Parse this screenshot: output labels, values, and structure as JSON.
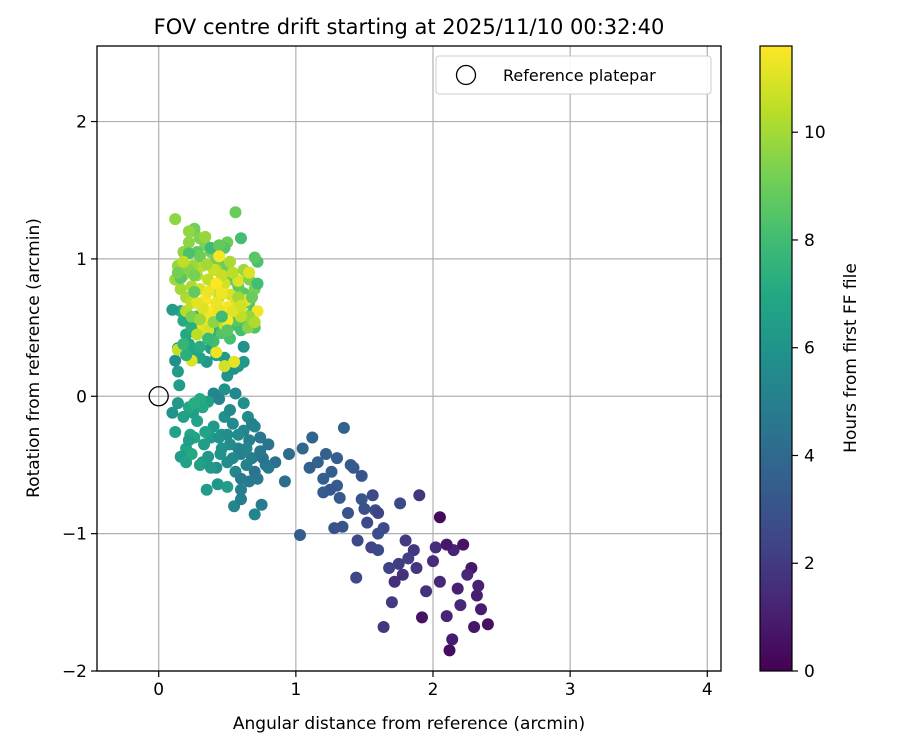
{
  "chart_data": {
    "type": "scatter",
    "title": "FOV centre drift starting at 2025/11/10 00:32:40",
    "xlabel": "Angular distance from reference (arcmin)",
    "ylabel": "Rotation from reference (arcmin)",
    "xlim": [
      -0.45,
      4.1
    ],
    "ylim": [
      -2.0,
      2.55
    ],
    "xticks": [
      0,
      1,
      2,
      3,
      4
    ],
    "xtick_labels": [
      "0",
      "1",
      "2",
      "3",
      "4"
    ],
    "yticks": [
      -2,
      -1,
      0,
      1,
      2
    ],
    "ytick_labels": [
      "−2",
      "−1",
      "0",
      "1",
      "2"
    ],
    "grid": true,
    "legend": {
      "location": "top-right",
      "entries": [
        {
          "label": "Reference platepar",
          "marker": "open-circle",
          "x": 0,
          "y": 0
        }
      ]
    },
    "colorbar": {
      "label": "Hours from first FF file",
      "colormap": "viridis",
      "range": [
        0,
        11.6
      ],
      "ticks": [
        0,
        2,
        4,
        6,
        8,
        10
      ],
      "tick_labels": [
        "0",
        "2",
        "4",
        "6",
        "8",
        "10"
      ]
    },
    "points": [
      [
        2.05,
        -0.88,
        0.3
      ],
      [
        2.12,
        -1.85,
        0.4
      ],
      [
        2.4,
        -1.66,
        0.5
      ],
      [
        2.22,
        -1.08,
        0.6
      ],
      [
        2.28,
        -1.25,
        0.8
      ],
      [
        2.32,
        -1.45,
        1.0
      ],
      [
        2.35,
        -1.55,
        0.9
      ],
      [
        2.18,
        -1.4,
        1.1
      ],
      [
        2.3,
        -1.68,
        0.7
      ],
      [
        2.15,
        -1.12,
        1.2
      ],
      [
        2.25,
        -1.3,
        1.3
      ],
      [
        2.1,
        -1.6,
        1.2
      ],
      [
        2.05,
        -1.35,
        1.4
      ],
      [
        2.0,
        -1.2,
        1.5
      ],
      [
        1.92,
        -1.61,
        0.6
      ],
      [
        2.02,
        -1.1,
        1.6
      ],
      [
        2.1,
        -1.08,
        0.8
      ],
      [
        2.2,
        -1.52,
        1.4
      ],
      [
        2.33,
        -1.38,
        1.1
      ],
      [
        2.14,
        -1.77,
        0.9
      ],
      [
        1.9,
        -0.72,
        1.8
      ],
      [
        1.95,
        -1.42,
        1.7
      ],
      [
        1.86,
        -1.12,
        1.9
      ],
      [
        1.8,
        -1.05,
        2.0
      ],
      [
        1.78,
        -1.3,
        1.7
      ],
      [
        1.75,
        -1.22,
        2.1
      ],
      [
        1.7,
        -1.5,
        2.0
      ],
      [
        1.68,
        -1.25,
        2.3
      ],
      [
        1.64,
        -1.68,
        1.9
      ],
      [
        1.82,
        -1.18,
        2.2
      ],
      [
        1.88,
        -1.25,
        1.8
      ],
      [
        1.72,
        -1.35,
        1.6
      ],
      [
        1.6,
        -1.12,
        2.6
      ],
      [
        1.56,
        -0.72,
        2.7
      ],
      [
        1.6,
        -1.0,
        2.8
      ],
      [
        1.52,
        -0.92,
        2.6
      ],
      [
        1.5,
        -0.82,
        2.9
      ],
      [
        1.48,
        -0.58,
        3.0
      ],
      [
        1.44,
        -1.32,
        2.5
      ],
      [
        1.42,
        -0.52,
        3.2
      ],
      [
        1.38,
        -0.85,
        3.0
      ],
      [
        1.34,
        -0.95,
        3.1
      ],
      [
        1.32,
        -0.74,
        3.3
      ],
      [
        1.3,
        -0.65,
        3.4
      ],
      [
        1.28,
        -0.96,
        2.9
      ],
      [
        1.26,
        -0.55,
        3.5
      ],
      [
        1.22,
        -0.42,
        3.6
      ],
      [
        1.2,
        -0.6,
        3.5
      ],
      [
        1.16,
        -0.48,
        3.7
      ],
      [
        1.12,
        -0.3,
        3.8
      ],
      [
        1.1,
        -0.52,
        3.6
      ],
      [
        1.05,
        -0.38,
        3.9
      ],
      [
        1.03,
        -1.01,
        3.4
      ],
      [
        1.35,
        -0.23,
        3.7
      ],
      [
        1.58,
        -0.83,
        2.8
      ],
      [
        1.64,
        -0.96,
        2.7
      ],
      [
        1.45,
        -1.05,
        2.6
      ],
      [
        1.4,
        -0.5,
        3.3
      ],
      [
        1.2,
        -0.7,
        3.4
      ],
      [
        1.3,
        -0.45,
        3.5
      ],
      [
        1.25,
        -0.68,
        3.2
      ],
      [
        1.55,
        -1.1,
        2.4
      ],
      [
        1.76,
        -0.78,
        2.5
      ],
      [
        1.6,
        -0.85,
        2.3
      ],
      [
        1.48,
        -0.75,
        3.1
      ],
      [
        0.95,
        -0.42,
        4.1
      ],
      [
        0.92,
        -0.62,
        4.2
      ],
      [
        0.85,
        -0.48,
        4.3
      ],
      [
        0.8,
        -0.35,
        4.4
      ],
      [
        0.78,
        -0.5,
        4.5
      ],
      [
        0.74,
        -0.4,
        4.6
      ],
      [
        0.7,
        -0.55,
        4.4
      ],
      [
        0.72,
        -0.6,
        4.7
      ],
      [
        0.75,
        -0.79,
        4.8
      ],
      [
        0.68,
        -0.45,
        4.9
      ],
      [
        0.66,
        -0.32,
        5.0
      ],
      [
        0.64,
        -0.5,
        5.1
      ],
      [
        0.62,
        -0.25,
        5.2
      ],
      [
        0.6,
        -0.68,
        5.0
      ],
      [
        0.58,
        -0.38,
        5.3
      ],
      [
        0.56,
        -0.55,
        5.4
      ],
      [
        0.55,
        -0.8,
        5.2
      ],
      [
        0.54,
        -0.2,
        5.5
      ],
      [
        0.52,
        -0.35,
        5.6
      ],
      [
        0.5,
        -0.48,
        5.7
      ],
      [
        0.48,
        -0.15,
        5.8
      ],
      [
        0.46,
        -0.28,
        5.9
      ],
      [
        0.45,
        -0.42,
        6.0
      ],
      [
        0.43,
        -0.64,
        6.1
      ],
      [
        0.42,
        -0.52,
        5.9
      ],
      [
        0.4,
        -0.22,
        6.2
      ],
      [
        0.38,
        -0.3,
        6.3
      ],
      [
        0.36,
        -0.44,
        6.2
      ],
      [
        0.35,
        -0.68,
        6.4
      ],
      [
        0.33,
        -0.35,
        6.5
      ],
      [
        0.32,
        -0.48,
        6.3
      ],
      [
        0.3,
        -0.5,
        6.6
      ],
      [
        0.28,
        -0.18,
        6.7
      ],
      [
        0.26,
        -0.3,
        6.8
      ],
      [
        0.25,
        -0.12,
        6.5
      ],
      [
        0.23,
        -0.28,
        6.9
      ],
      [
        0.22,
        -0.08,
        7.0
      ],
      [
        0.2,
        -0.38,
        6.8
      ],
      [
        0.18,
        -0.15,
        6.6
      ],
      [
        0.16,
        -0.44,
        6.4
      ],
      [
        0.14,
        -0.05,
        6.2
      ],
      [
        0.12,
        -0.26,
        6.7
      ],
      [
        0.1,
        -0.12,
        6.0
      ],
      [
        0.12,
        0.26,
        5.8
      ],
      [
        0.14,
        0.35,
        5.6
      ],
      [
        0.15,
        0.08,
        6.4
      ],
      [
        0.14,
        0.18,
        6.3
      ],
      [
        0.6,
        -0.6,
        4.9
      ],
      [
        0.66,
        -0.62,
        4.8
      ],
      [
        0.7,
        -0.86,
        5.3
      ],
      [
        0.58,
        -0.28,
        5.6
      ],
      [
        0.62,
        -0.05,
        5.8
      ],
      [
        0.65,
        -0.15,
        5.6
      ],
      [
        0.7,
        -0.22,
        5.2
      ],
      [
        0.56,
        0.02,
        5.4
      ],
      [
        0.52,
        -0.1,
        5.5
      ],
      [
        0.48,
        0.05,
        5.9
      ],
      [
        0.4,
        0.02,
        5.3
      ],
      [
        0.44,
        -0.02,
        5.2
      ],
      [
        0.36,
        -0.04,
        6.6
      ],
      [
        0.32,
        -0.08,
        6.9
      ],
      [
        0.3,
        -0.02,
        7.1
      ],
      [
        0.26,
        -0.05,
        7.2
      ],
      [
        0.5,
        -0.66,
        6.5
      ],
      [
        0.38,
        -0.52,
        6.2
      ],
      [
        0.6,
        -0.75,
        5.0
      ],
      [
        0.6,
        -0.42,
        5.1
      ],
      [
        0.54,
        -0.45,
        5.5
      ],
      [
        0.64,
        -0.38,
        5.3
      ],
      [
        0.8,
        -0.52,
        4.7
      ],
      [
        0.76,
        -0.45,
        4.5
      ],
      [
        0.74,
        -0.3,
        4.6
      ],
      [
        0.2,
        -0.48,
        6.7
      ],
      [
        0.24,
        -0.42,
        7.0
      ],
      [
        0.44,
        -0.3,
        6.0
      ],
      [
        0.22,
        -0.32,
        6.5
      ],
      [
        0.34,
        -0.26,
        6.7
      ],
      [
        0.68,
        -0.2,
        5.1
      ],
      [
        0.5,
        -0.28,
        5.7
      ],
      [
        0.46,
        -0.38,
        6.0
      ],
      [
        0.5,
        0.15,
        6.0
      ],
      [
        0.55,
        0.2,
        5.9
      ],
      [
        0.58,
        0.22,
        6.1
      ],
      [
        0.62,
        0.25,
        6.2
      ],
      [
        0.48,
        0.28,
        6.4
      ],
      [
        0.42,
        0.3,
        6.5
      ],
      [
        0.38,
        0.35,
        6.6
      ],
      [
        0.35,
        0.25,
        6.3
      ],
      [
        0.3,
        0.28,
        6.7
      ],
      [
        0.26,
        0.32,
        6.8
      ],
      [
        0.22,
        0.38,
        6.9
      ],
      [
        0.2,
        0.45,
        7.0
      ],
      [
        0.18,
        0.55,
        7.1
      ],
      [
        0.16,
        0.62,
        7.2
      ],
      [
        0.24,
        0.5,
        7.3
      ],
      [
        0.28,
        0.58,
        7.4
      ],
      [
        0.32,
        0.62,
        7.5
      ],
      [
        0.36,
        0.55,
        7.6
      ],
      [
        0.4,
        0.48,
        7.5
      ],
      [
        0.44,
        0.55,
        7.7
      ],
      [
        0.48,
        0.62,
        7.8
      ],
      [
        0.52,
        0.58,
        7.9
      ],
      [
        0.56,
        0.52,
        8.0
      ],
      [
        0.6,
        0.48,
        8.1
      ],
      [
        0.64,
        0.55,
        8.2
      ],
      [
        0.68,
        0.6,
        8.3
      ],
      [
        0.7,
        0.5,
        8.4
      ],
      [
        0.66,
        0.68,
        8.5
      ],
      [
        0.62,
        0.75,
        8.6
      ],
      [
        0.58,
        0.8,
        8.7
      ],
      [
        0.54,
        0.85,
        8.8
      ],
      [
        0.5,
        0.9,
        8.9
      ],
      [
        0.46,
        0.95,
        9.0
      ],
      [
        0.42,
        1.0,
        9.1
      ],
      [
        0.38,
        1.05,
        9.2
      ],
      [
        0.34,
        1.1,
        9.3
      ],
      [
        0.3,
        1.15,
        9.4
      ],
      [
        0.26,
        1.2,
        9.5
      ],
      [
        0.22,
        1.12,
        9.6
      ],
      [
        0.18,
        1.05,
        9.7
      ],
      [
        0.14,
        0.95,
        9.8
      ],
      [
        0.12,
        0.85,
        9.9
      ],
      [
        0.16,
        0.78,
        10.0
      ],
      [
        0.2,
        0.72,
        10.1
      ],
      [
        0.24,
        0.8,
        10.2
      ],
      [
        0.28,
        0.88,
        10.3
      ],
      [
        0.32,
        0.95,
        10.4
      ],
      [
        0.36,
        0.85,
        10.5
      ],
      [
        0.4,
        0.78,
        10.6
      ],
      [
        0.44,
        0.72,
        10.7
      ],
      [
        0.48,
        0.82,
        10.8
      ],
      [
        0.52,
        0.74,
        10.9
      ],
      [
        0.56,
        0.68,
        11.0
      ],
      [
        0.6,
        0.62,
        11.1
      ],
      [
        0.64,
        0.7,
        11.2
      ],
      [
        0.12,
        1.29,
        9.6
      ],
      [
        0.56,
        1.34,
        8.9
      ],
      [
        0.72,
        0.62,
        11.4
      ],
      [
        0.24,
        0.26,
        11.0
      ],
      [
        0.14,
        0.34,
        10.6
      ],
      [
        0.55,
        0.25,
        11.2
      ],
      [
        0.42,
        0.32,
        11.3
      ],
      [
        0.48,
        0.22,
        10.8
      ],
      [
        0.65,
        0.88,
        10.8
      ],
      [
        0.58,
        0.84,
        11.0
      ],
      [
        0.1,
        0.63,
        6.4
      ],
      [
        0.62,
        0.36,
        5.9
      ],
      [
        0.65,
        0.5,
        9.5
      ],
      [
        0.66,
        0.58,
        9.7
      ],
      [
        0.72,
        0.98,
        8.3
      ],
      [
        0.7,
        1.01,
        8.6
      ],
      [
        0.6,
        1.15,
        8.1
      ],
      [
        0.5,
        1.12,
        9.0
      ],
      [
        0.48,
        1.08,
        8.5
      ],
      [
        0.38,
        1.08,
        7.9
      ],
      [
        0.28,
        1.05,
        8.7
      ],
      [
        0.25,
        0.95,
        9.9
      ],
      [
        0.3,
        0.78,
        10.9
      ],
      [
        0.34,
        0.7,
        11.5
      ],
      [
        0.38,
        0.62,
        11.6
      ],
      [
        0.42,
        0.68,
        11.3
      ],
      [
        0.46,
        0.75,
        11.4
      ],
      [
        0.5,
        0.65,
        11.5
      ],
      [
        0.32,
        0.52,
        11.2
      ],
      [
        0.36,
        0.48,
        10.9
      ],
      [
        0.28,
        0.45,
        10.4
      ],
      [
        0.2,
        0.62,
        10.3
      ],
      [
        0.24,
        0.68,
        10.5
      ],
      [
        0.18,
        0.88,
        9.8
      ],
      [
        0.22,
        0.92,
        9.5
      ],
      [
        0.3,
        1.02,
        9.0
      ],
      [
        0.42,
        0.92,
        10.2
      ],
      [
        0.46,
        0.88,
        10.6
      ],
      [
        0.54,
        0.9,
        10.4
      ],
      [
        0.62,
        0.92,
        9.9
      ],
      [
        0.7,
        0.78,
        9.2
      ],
      [
        0.66,
        0.85,
        9.4
      ],
      [
        0.58,
        0.72,
        10.0
      ],
      [
        0.2,
        0.3,
        7.3
      ],
      [
        0.18,
        0.38,
        7.6
      ],
      [
        0.3,
        0.36,
        7.2
      ],
      [
        0.56,
        0.55,
        8.6
      ],
      [
        0.52,
        0.42,
        8.2
      ],
      [
        0.46,
        0.46,
        8.4
      ],
      [
        0.4,
        0.4,
        8.0
      ],
      [
        0.36,
        0.42,
        7.8
      ],
      [
        0.52,
        0.98,
        10.1
      ],
      [
        0.4,
        0.92,
        10.7
      ],
      [
        0.35,
        0.96,
        10.0
      ],
      [
        0.26,
        0.88,
        9.2
      ],
      [
        0.44,
        1.1,
        8.8
      ],
      [
        0.34,
        1.16,
        9.8
      ],
      [
        0.26,
        1.22,
        9.1
      ],
      [
        0.22,
        1.2,
        9.7
      ],
      [
        0.66,
        0.9,
        11.0
      ],
      [
        0.6,
        0.58,
        10.5
      ],
      [
        0.7,
        0.54,
        10.2
      ],
      [
        0.54,
        0.62,
        11.1
      ],
      [
        0.36,
        0.58,
        11.4
      ],
      [
        0.32,
        0.64,
        11.0
      ],
      [
        0.48,
        0.52,
        10.7
      ],
      [
        0.44,
        0.62,
        11.2
      ],
      [
        0.28,
        0.68,
        11.1
      ],
      [
        0.24,
        0.58,
        9.3
      ],
      [
        0.4,
        0.54,
        9.6
      ],
      [
        0.5,
        0.55,
        11.6
      ],
      [
        0.44,
        1.02,
        11.5
      ],
      [
        0.36,
        0.76,
        11.3
      ],
      [
        0.6,
        0.66,
        10.8
      ],
      [
        0.3,
        0.56,
        9.9
      ],
      [
        0.68,
        0.72,
        8.9
      ],
      [
        0.72,
        0.82,
        8.1
      ],
      [
        0.26,
        0.76,
        8.8
      ],
      [
        0.42,
        0.82,
        11.6
      ],
      [
        0.16,
        0.86,
        8.6
      ],
      [
        0.14,
        0.9,
        9.1
      ],
      [
        0.22,
        1.04,
        8.3
      ],
      [
        0.18,
        0.98,
        10.5
      ],
      [
        0.46,
        0.58,
        7.9
      ],
      [
        0.5,
        0.48,
        8.6
      ]
    ]
  }
}
